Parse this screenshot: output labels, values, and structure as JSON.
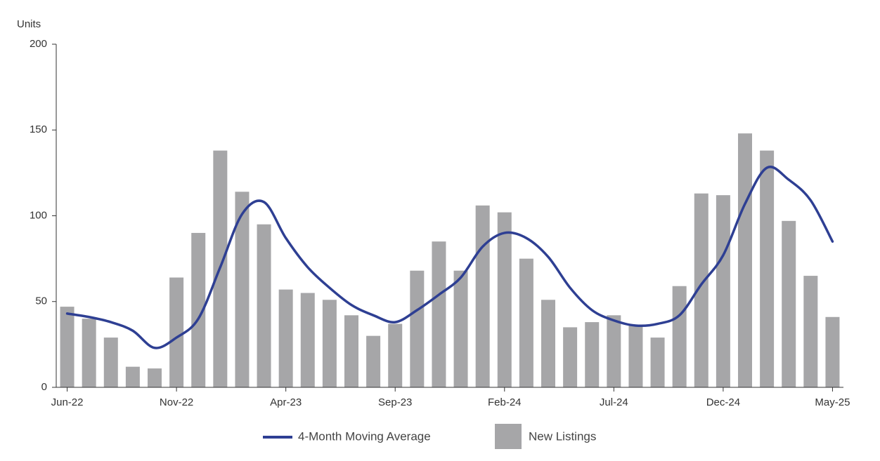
{
  "chart_data": {
    "type": "bar",
    "y_label": "Units",
    "categories": [
      "Jun-22",
      null,
      null,
      null,
      null,
      "Nov-22",
      null,
      null,
      null,
      null,
      "Apr-23",
      null,
      null,
      null,
      null,
      "Sep-23",
      null,
      null,
      null,
      null,
      "Feb-24",
      null,
      null,
      null,
      null,
      "Jul-24",
      null,
      null,
      null,
      null,
      "Dec-24",
      null,
      null,
      null,
      null,
      "May-25"
    ],
    "series": [
      {
        "name": "4-Month Moving Average",
        "type": "line",
        "color": "#2e3f93",
        "values": [
          43,
          41,
          38,
          33,
          23,
          29,
          40,
          70,
          101,
          108,
          87,
          70,
          58,
          48,
          42,
          38,
          45,
          54,
          64,
          82,
          90,
          87,
          76,
          58,
          45,
          39,
          36,
          37,
          42,
          60,
          77,
          107,
          128,
          121,
          109,
          85
        ]
      },
      {
        "name": "New Listings",
        "type": "bar",
        "color": "#a6a6a8",
        "values": [
          47,
          40,
          29,
          12,
          11,
          64,
          90,
          138,
          114,
          95,
          57,
          55,
          51,
          42,
          30,
          37,
          68,
          85,
          68,
          106,
          102,
          75,
          51,
          35,
          38,
          42,
          36,
          29,
          59,
          113,
          112,
          148,
          138,
          97,
          65,
          41
        ]
      }
    ],
    "ylim": [
      0,
      200
    ],
    "yticks": [
      0,
      50,
      100,
      150,
      200
    ],
    "grid": false,
    "legend": "bottom"
  }
}
